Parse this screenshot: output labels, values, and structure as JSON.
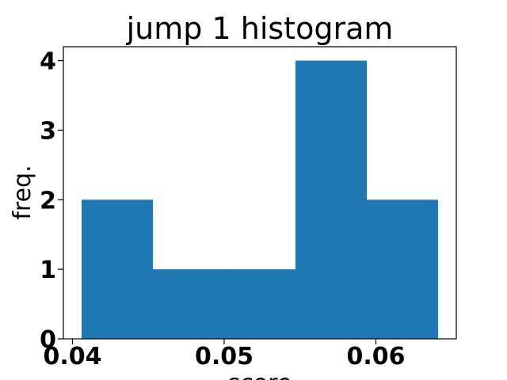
{
  "chart_data": {
    "type": "bar",
    "title": "jump 1 histogram",
    "xlabel": "score",
    "ylabel": "freq.",
    "bins": [
      {
        "x0": 0.0406,
        "x1": 0.0453,
        "value": 2
      },
      {
        "x0": 0.0453,
        "x1": 0.05,
        "value": 1
      },
      {
        "x0": 0.05,
        "x1": 0.0547,
        "value": 1
      },
      {
        "x0": 0.0547,
        "x1": 0.0594,
        "value": 4
      },
      {
        "x0": 0.0594,
        "x1": 0.0641,
        "value": 2
      }
    ],
    "xlim": [
      0.0394,
      0.0653
    ],
    "ylim": [
      0,
      4.2
    ],
    "xticks": [
      {
        "value": 0.04,
        "label": "0.04"
      },
      {
        "value": 0.05,
        "label": "0.05"
      },
      {
        "value": 0.06,
        "label": "0.06"
      }
    ],
    "yticks": [
      {
        "value": 0,
        "label": "0"
      },
      {
        "value": 1,
        "label": "1"
      },
      {
        "value": 2,
        "label": "2"
      },
      {
        "value": 3,
        "label": "3"
      },
      {
        "value": 4,
        "label": "4"
      }
    ],
    "grid": false,
    "bar_color": "#1f77b4"
  }
}
